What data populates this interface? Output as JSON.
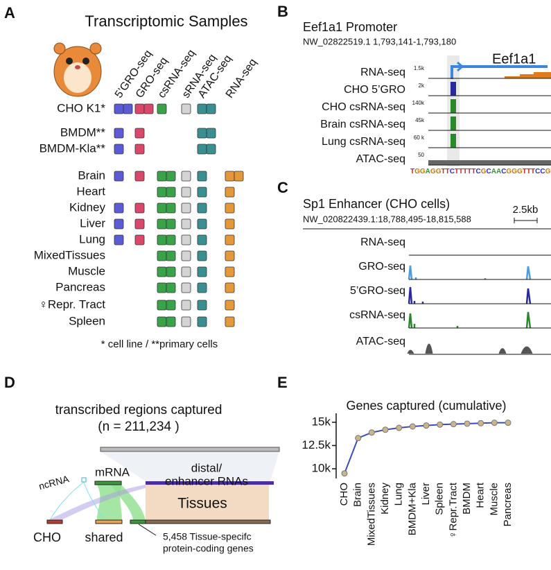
{
  "panels": {
    "a": "A",
    "b": "B",
    "c": "C",
    "d": "D",
    "e": "E"
  },
  "samples": {
    "title": "Transcriptomic Samples",
    "assays": [
      {
        "name": "5’GRO-seq",
        "color": "#5b5bd6"
      },
      {
        "name": "GRO-seq",
        "color": "#d9486a"
      },
      {
        "name": "csRNA-seq",
        "color": "#3aa34a"
      },
      {
        "name": "sRNA-seq",
        "color": "#d4d4d4"
      },
      {
        "name": "ATAC-seq",
        "color": "#3a8f93"
      },
      {
        "name": "RNA-seq",
        "color": "#e5983a"
      }
    ],
    "rows": [
      {
        "label": "CHO K1*",
        "counts": [
          2,
          2,
          1,
          1,
          2,
          0
        ]
      },
      {
        "label": "BMDM**",
        "counts": [
          1,
          1,
          0,
          0,
          2,
          0
        ]
      },
      {
        "label": "BMDM-Kla**",
        "counts": [
          1,
          1,
          0,
          0,
          2,
          0
        ]
      },
      {
        "label": "Brain",
        "counts": [
          1,
          1,
          2,
          1,
          1,
          2
        ]
      },
      {
        "label": "Heart",
        "counts": [
          0,
          0,
          2,
          1,
          1,
          1
        ]
      },
      {
        "label": "Kidney",
        "counts": [
          1,
          1,
          2,
          1,
          1,
          1
        ]
      },
      {
        "label": "Liver",
        "counts": [
          1,
          1,
          2,
          1,
          1,
          1
        ]
      },
      {
        "label": "Lung",
        "counts": [
          1,
          1,
          2,
          1,
          1,
          1
        ]
      },
      {
        "label": "MixedTissues",
        "counts": [
          0,
          0,
          2,
          1,
          1,
          1
        ]
      },
      {
        "label": "Muscle",
        "counts": [
          0,
          0,
          2,
          1,
          1,
          1
        ]
      },
      {
        "label": "Pancreas",
        "counts": [
          0,
          0,
          2,
          1,
          1,
          1
        ]
      },
      {
        "label": "♀Repr. Tract",
        "counts": [
          0,
          0,
          2,
          1,
          1,
          1
        ]
      },
      {
        "label": "Spleen",
        "counts": [
          0,
          0,
          2,
          1,
          1,
          1
        ]
      }
    ],
    "footnote": "* cell line / **primary cells"
  },
  "promoter": {
    "title": "Eef1a1 Promoter",
    "coordinates": "NW_02822519.1 1,793,141-1,793,180",
    "gene": "Eef1a1",
    "tracks": [
      {
        "name": "RNA-seq",
        "scale": "1.5k"
      },
      {
        "name": "CHO 5’GRO",
        "scale": "2k"
      },
      {
        "name": "CHO csRNA-seq",
        "scale": "140k"
      },
      {
        "name": "Brain csRNA-seq",
        "scale": "45k"
      },
      {
        "name": "Lung csRNA-seq",
        "scale": "60 k"
      },
      {
        "name": "ATAC-seq",
        "scale": "50"
      }
    ],
    "sequence": "TGGAGGTTCTTTTTCGCAACGGGTTTCCGGTC"
  },
  "enhancer": {
    "title": "Sp1 Enhancer (CHO cells)",
    "coordinates": "NW_020822439.1:18,788,495-18,815,588",
    "scale": "2.5kb",
    "tracks": [
      "RNA-seq",
      "GRO-seq",
      "5’GRO-seq",
      "csRNA-seq",
      "ATAC-seq"
    ]
  },
  "regions": {
    "title": "transcribed regions captured",
    "count": "(n = 211,234 )",
    "mrna": "mRNA",
    "ncrna": "ncRNA",
    "distal": [
      "distal/",
      "enhancer RNAs"
    ],
    "tissues": "Tissues",
    "cho": "CHO",
    "shared": "shared",
    "note": [
      "5,458 Tissue-specifc",
      "protein-coding genes"
    ]
  },
  "chart_data": {
    "type": "line",
    "title": "Genes captured (cumulative)",
    "categories": [
      "CHO",
      "Brain",
      "MixedTissues",
      "Kidney",
      "Lung",
      "BMDM+Kla",
      "Liver",
      "Spleen",
      "♀Repr.Tract",
      "BMDM",
      "Heart",
      "Muscle",
      "Pancreas"
    ],
    "values": [
      9500,
      13300,
      13900,
      14200,
      14400,
      14550,
      14650,
      14750,
      14800,
      14850,
      14900,
      14950,
      14950
    ],
    "color": "#3b4bbf",
    "marker_color": "#c9b48c",
    "ylim": [
      9300,
      15400
    ],
    "yticks": [
      {
        "value": 10000,
        "label": "10k"
      },
      {
        "value": 12500,
        "label": "12.5k"
      },
      {
        "value": 15000,
        "label": "15k"
      }
    ]
  }
}
